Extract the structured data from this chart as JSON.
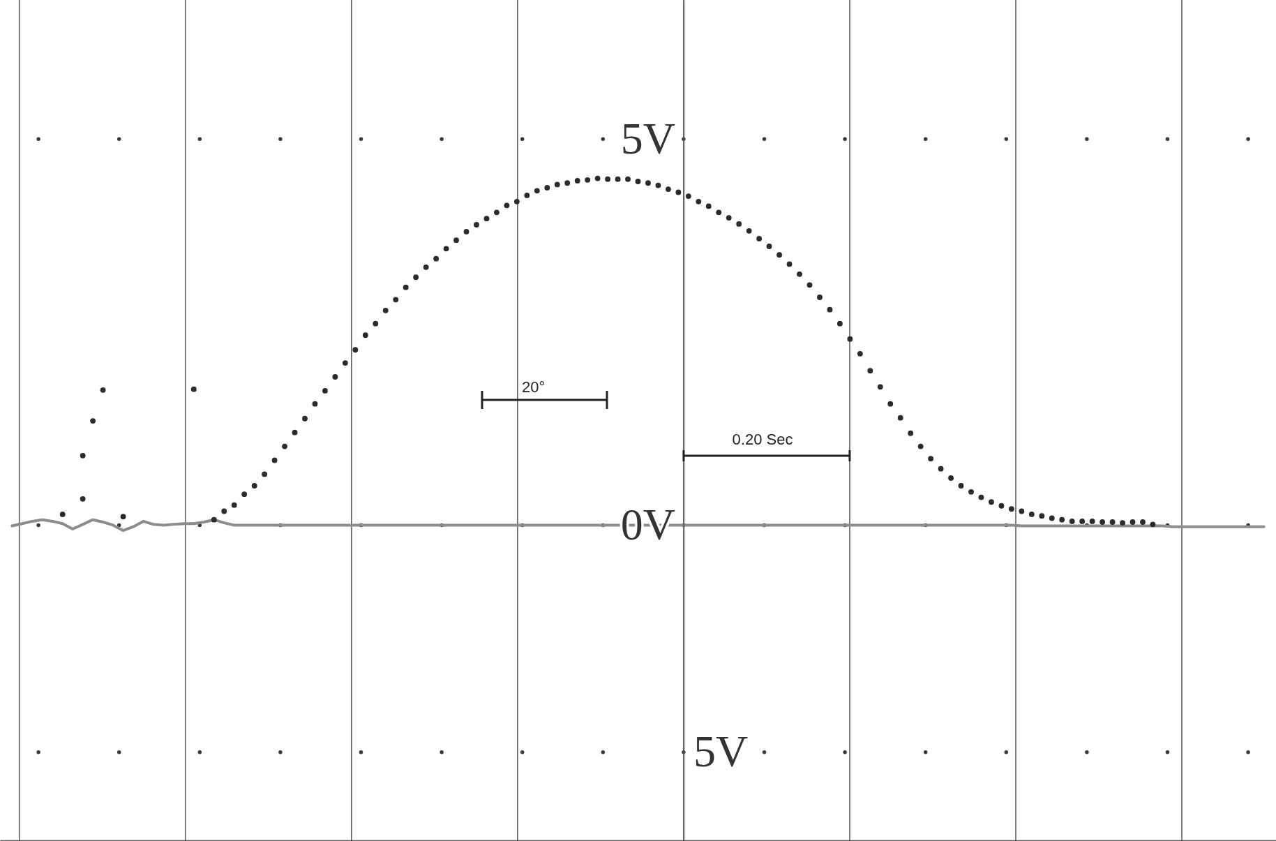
{
  "chart_data": {
    "type": "scatter",
    "categories": [
      null,
      null,
      null,
      null,
      null,
      null,
      null,
      null,
      null,
      null,
      null,
      null,
      null,
      null,
      null,
      null,
      null,
      null,
      null,
      null,
      null,
      null,
      null,
      null,
      null,
      null,
      null,
      null,
      null,
      null,
      null,
      null,
      null,
      null,
      null,
      null,
      null,
      null,
      null,
      null,
      null,
      null,
      null,
      null,
      null,
      null,
      null,
      null,
      null,
      null,
      null,
      null,
      null,
      null,
      null,
      null,
      null,
      null,
      null,
      null,
      null,
      null,
      null,
      null,
      null,
      null,
      null,
      null,
      null,
      null,
      null,
      null,
      null,
      null,
      null,
      null,
      null,
      null,
      null,
      null,
      null,
      null,
      null,
      null,
      null,
      null,
      null,
      null,
      null,
      null,
      null,
      null,
      null,
      null,
      null,
      null,
      null,
      null,
      null,
      null,
      null,
      null,
      null,
      null,
      null,
      null,
      null,
      null,
      null,
      null,
      null,
      null,
      null,
      null,
      null,
      null,
      null,
      null,
      null,
      null,
      null,
      null,
      null,
      null,
      null
    ],
    "ylim": [
      -4.09,
      6.8
    ],
    "yticks": [
      {
        "value": 5,
        "label": "5V"
      },
      {
        "value": 0,
        "label": "0V"
      }
    ],
    "tick_labels": "y",
    "grid": true,
    "ref_lines": [
      {
        "axis": "y",
        "value": -2.94,
        "label": "5V",
        "line_style": "dotted",
        "color": "#3a3a3a"
      }
    ],
    "annotations": [
      "20°",
      "0.20 Sec"
    ],
    "series": [
      {
        "marker": "circle",
        "color": "#2b2b2b",
        "values": [
          null,
          null,
          null,
          null,
          null,
          0.14,
          null,
          0.34,
          1.35,
          1.75,
          null,
          0.11,
          null,
          null,
          null,
          null,
          null,
          null,
          1.76,
          null,
          0.07,
          0.18,
          0.26,
          0.4,
          0.51,
          0.66,
          0.84,
          1.02,
          1.2,
          1.38,
          1.57,
          1.74,
          1.92,
          2.1,
          2.27,
          2.46,
          2.61,
          2.78,
          2.92,
          3.08,
          3.21,
          3.34,
          3.45,
          3.58,
          3.69,
          3.8,
          3.89,
          3.97,
          4.05,
          4.14,
          4.19,
          4.27,
          4.33,
          4.37,
          4.41,
          4.43,
          4.46,
          4.47,
          4.49,
          4.48,
          4.48,
          4.48,
          4.45,
          4.43,
          4.4,
          4.35,
          4.31,
          4.26,
          4.19,
          4.13,
          4.05,
          3.98,
          3.9,
          3.81,
          3.71,
          3.61,
          3.5,
          3.38,
          3.25,
          3.11,
          2.95,
          2.79,
          2.61,
          2.41,
          2.22,
          2.0,
          1.79,
          1.57,
          1.39,
          1.19,
          1.02,
          0.86,
          0.73,
          0.61,
          0.51,
          0.43,
          0.36,
          0.3,
          0.25,
          0.21,
          0.18,
          0.14,
          0.12,
          0.09,
          0.07,
          0.05,
          0.05,
          0.05,
          0.04,
          0.04,
          0.03,
          0.04,
          0.04,
          0.01,
          null,
          null,
          null,
          null,
          null,
          null,
          null,
          null,
          null,
          null,
          null
        ]
      },
      {
        "marker": "circle",
        "color": "#2b2b2b",
        "values": [
          null,
          null,
          null,
          null,
          null,
          null,
          null,
          0.9,
          null,
          null,
          null,
          null,
          null,
          null,
          null,
          null,
          null,
          null,
          null,
          null,
          null,
          null,
          null,
          null,
          null,
          null,
          null,
          null,
          null,
          null,
          null,
          null,
          null,
          null,
          null,
          null,
          null,
          null,
          null,
          null,
          null,
          null,
          null,
          null,
          null,
          null,
          null,
          null,
          null,
          null,
          null,
          null,
          null,
          null,
          null,
          null,
          null,
          null,
          null,
          null,
          null,
          null,
          null,
          null,
          null,
          null,
          null,
          null,
          null,
          null,
          null,
          null,
          null,
          null,
          null,
          null,
          null,
          null,
          null,
          null,
          null,
          null,
          null,
          null,
          null,
          null,
          null,
          null,
          null,
          null,
          null,
          null,
          null,
          null,
          null,
          null,
          null,
          null,
          null,
          null,
          null,
          null,
          null,
          null,
          null,
          null,
          null,
          null,
          null,
          null,
          null,
          null,
          null,
          null,
          null,
          null,
          null,
          null,
          null,
          null,
          null,
          null,
          null,
          null,
          null
        ]
      },
      {
        "type": "line",
        "color": "#8c8c8c",
        "values": [
          -0.01,
          0.02,
          0.05,
          0.07,
          0.05,
          0.02,
          -0.05,
          0.01,
          0.07,
          0.04,
          0.0,
          -0.07,
          -0.02,
          0.05,
          0.01,
          0.0,
          0.01,
          0.02,
          0.02,
          0.04,
          0.07,
          0.03,
          0.0,
          0.0,
          0.0,
          0.0,
          0.0,
          0.0,
          0.0,
          0.0,
          0.0,
          0.0,
          0.0,
          0.0,
          0.0,
          0.0,
          0.0,
          0.0,
          0.0,
          0.0,
          0.0,
          0.0,
          0.0,
          0.0,
          0.0,
          0.0,
          0.0,
          0.0,
          0.0,
          0.0,
          0.0,
          0.0,
          0.0,
          0.0,
          0.0,
          0.0,
          0.0,
          0.0,
          0.0,
          0.0,
          0.0,
          0.0,
          0.0,
          0.0,
          0.0,
          0.0,
          0.0,
          0.0,
          0.0,
          0.0,
          0.0,
          0.0,
          0.0,
          0.0,
          0.0,
          0.0,
          0.0,
          0.0,
          0.0,
          0.0,
          0.0,
          0.0,
          0.0,
          0.0,
          0.0,
          0.0,
          0.0,
          0.0,
          0.0,
          0.0,
          0.0,
          0.0,
          0.0,
          0.0,
          0.0,
          0.0,
          0.0,
          0.0,
          0.0,
          0.0,
          -0.01,
          -0.01,
          -0.01,
          -0.01,
          -0.01,
          -0.01,
          -0.01,
          -0.01,
          -0.01,
          -0.01,
          -0.01,
          -0.01,
          -0.01,
          -0.01,
          -0.01,
          -0.02,
          -0.02,
          -0.02,
          -0.02,
          -0.02,
          -0.02,
          -0.02,
          -0.02,
          -0.02,
          -0.02
        ]
      }
    ]
  }
}
